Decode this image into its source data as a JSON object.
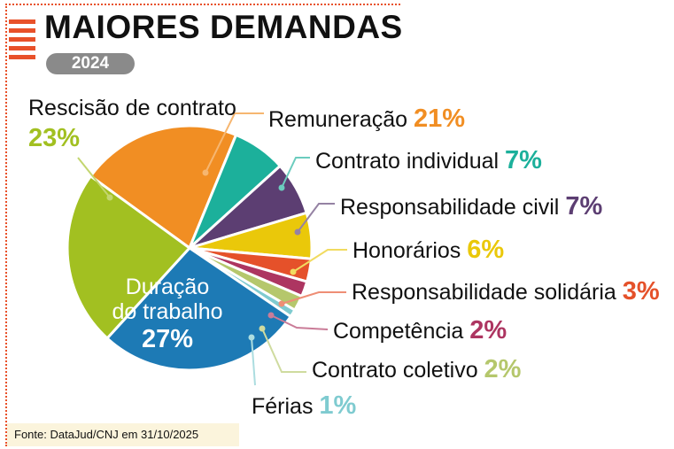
{
  "header": {
    "title": "MAIORES DEMANDAS",
    "year": "2024"
  },
  "source": "Fonte: DataJud/CNJ em 31/10/2025",
  "chart_data": {
    "type": "pie",
    "slices": [
      {
        "label": "Remuneração",
        "value_label": "21%",
        "value": 21,
        "color": "#f18e23",
        "label_color": "#f18e23"
      },
      {
        "label": "Contrato individual",
        "value_label": "7%",
        "value": 7,
        "color": "#1cb09b",
        "label_color": "#1cb09b"
      },
      {
        "label": "Responsabilidade civil",
        "value_label": "7%",
        "value": 7,
        "color": "#5c3e72",
        "label_color": "#5c3e72"
      },
      {
        "label": "Honorários",
        "value_label": "6%",
        "value": 6,
        "color": "#eac80a",
        "label_color": "#eac80a"
      },
      {
        "label": "Responsabilidade solidária",
        "value_label": "3%",
        "value": 3,
        "color": "#e5512a",
        "label_color": "#e5512a"
      },
      {
        "label": "Competência",
        "value_label": "2%",
        "value": 2,
        "color": "#ad3561",
        "label_color": "#ad3561"
      },
      {
        "label": "Contrato coletivo",
        "value_label": "2%",
        "value": 2,
        "color": "#b5c76c",
        "label_color": "#b5c76c"
      },
      {
        "label": "Férias",
        "value_label": "1%",
        "value": 1,
        "color": "#7fcbd0",
        "label_color": "#7fcbd0"
      },
      {
        "label": "Duração do trabalho",
        "value_label": "27%",
        "value": 27,
        "color": "#1d7ab5",
        "label_color": "#ffffff"
      },
      {
        "label": "Rescisão de contrato",
        "value_label": "23%",
        "value": 23,
        "color": "#a2c021",
        "label_color": "#a2c021"
      }
    ]
  }
}
